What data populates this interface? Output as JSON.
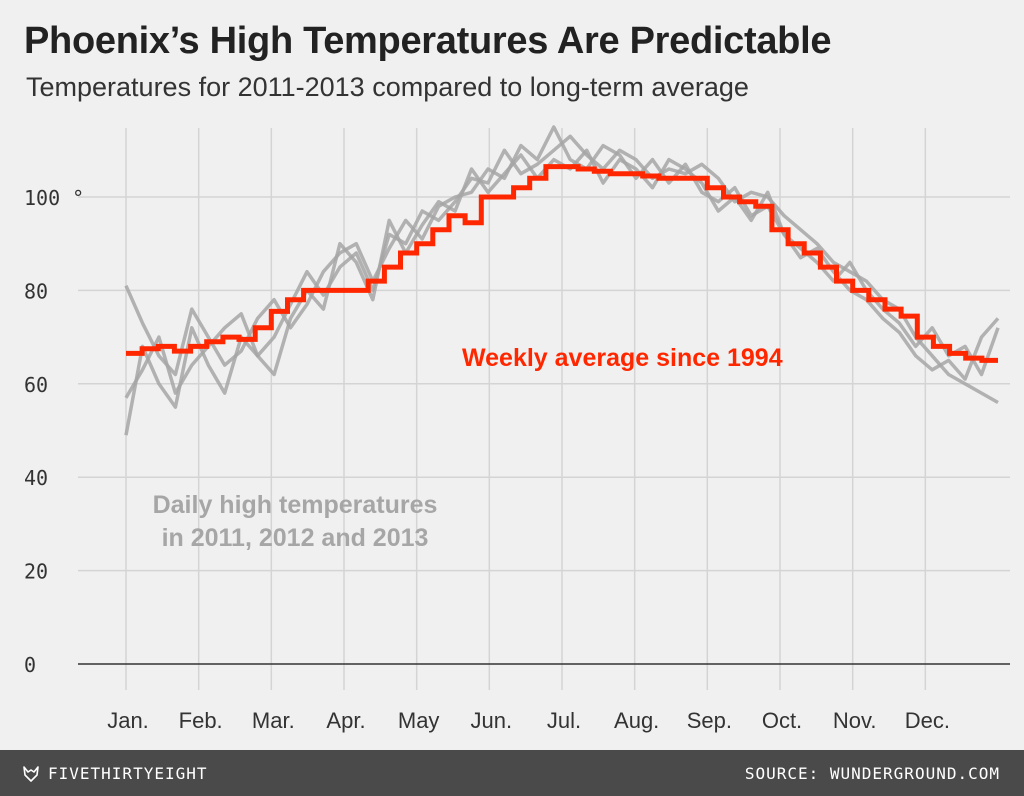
{
  "header": {
    "title": "Phoenix’s High Temperatures Are Predictable",
    "subtitle": "Temperatures for 2011-2013 compared to long-term average"
  },
  "footer": {
    "brand": "FIVETHIRTYEIGHT",
    "brand_icon": "fivethirtyeight-fox-icon",
    "source": "SOURCE: WUNDERGROUND.COM"
  },
  "colors": {
    "background": "#f0f0f0",
    "average_line": "#ff2700",
    "daily_lines": "#a6a6a6",
    "grid": "#d4d4d4",
    "footer": "#4a4a4a"
  },
  "chart_data": {
    "type": "line",
    "title": "Phoenix’s High Temperatures Are Predictable",
    "subtitle": "Temperatures for 2011-2013 compared to long-term average",
    "xlabel": "",
    "ylabel": "",
    "ylim": [
      0,
      120
    ],
    "yticks": [
      0,
      20,
      40,
      60,
      80,
      100
    ],
    "ytick_labels": [
      "0",
      "20",
      "40",
      "60",
      "80",
      "100 °"
    ],
    "x_categories": [
      "Jan.",
      "Feb.",
      "Mar.",
      "Apr.",
      "May",
      "Jun.",
      "Jul.",
      "Aug.",
      "Sep.",
      "Oct.",
      "Nov.",
      "Dec."
    ],
    "grid": true,
    "annotations": [
      {
        "text": "Weekly average since 1994",
        "color": "#ff2700"
      },
      {
        "text": "Daily high temperatures",
        "color": "#a6a6a6"
      },
      {
        "text": "in 2011, 2012 and 2013",
        "color": "#a6a6a6"
      }
    ],
    "average_series": {
      "name": "Weekly average since 1994",
      "note": "weekly step line, value per week starting Jan 1",
      "values": [
        66.5,
        67.5,
        68,
        67,
        68,
        69,
        70,
        69.5,
        72,
        75.5,
        78,
        80,
        80,
        80,
        80,
        82,
        85,
        88,
        90,
        93,
        96,
        94.5,
        100,
        100,
        102,
        104,
        106.5,
        106.5,
        106,
        105.5,
        105,
        105,
        104.5,
        104,
        104,
        104,
        102,
        100,
        99,
        98,
        93,
        90,
        88,
        85,
        82,
        80,
        78,
        76,
        74.5,
        70,
        68,
        66.5,
        65.5,
        65
      ]
    },
    "daily_series": [
      {
        "year": 2011,
        "note": "approximate daily highs, one value every 7 days",
        "values": [
          57,
          63,
          70,
          58,
          64,
          68,
          72,
          75,
          66,
          70,
          77,
          84,
          79,
          85,
          88,
          80,
          92,
          90,
          97,
          95,
          99,
          104,
          103,
          110,
          105,
          107,
          110,
          113,
          109,
          106,
          110,
          108,
          104,
          106,
          105,
          107,
          104,
          99,
          101,
          100,
          96,
          93,
          90,
          86,
          84,
          82,
          78,
          76,
          70,
          66,
          62,
          60,
          58,
          56
        ]
      },
      {
        "year": 2012,
        "note": "approximate daily highs, one value every 7 days",
        "values": [
          81,
          73,
          66,
          62,
          76,
          70,
          64,
          67,
          74,
          78,
          72,
          77,
          84,
          88,
          90,
          82,
          89,
          95,
          91,
          98,
          100,
          101,
          106,
          104,
          111,
          108,
          115,
          108,
          106,
          111,
          109,
          104,
          108,
          103,
          107,
          101,
          99,
          102,
          96,
          98,
          92,
          87,
          89,
          84,
          80,
          78,
          74,
          71,
          66,
          63,
          65,
          61,
          70,
          74
        ]
      },
      {
        "year": 2013,
        "note": "approximate daily highs, one value every 7 days",
        "values": [
          49,
          68,
          60,
          55,
          72,
          64,
          58,
          70,
          66,
          62,
          74,
          80,
          76,
          90,
          86,
          78,
          95,
          88,
          94,
          99,
          97,
          106,
          101,
          105,
          109,
          104,
          108,
          106,
          110,
          103,
          108,
          106,
          102,
          108,
          106,
          103,
          97,
          100,
          95,
          101,
          92,
          89,
          86,
          82,
          86,
          80,
          76,
          73,
          68,
          72,
          66,
          68,
          62,
          72
        ]
      }
    ]
  }
}
